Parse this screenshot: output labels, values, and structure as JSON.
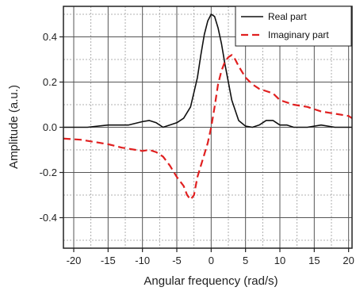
{
  "chart_data": {
    "type": "line",
    "title": "",
    "xlabel": "Angular frequency (rad/s)",
    "ylabel": "Amplitude (a.u.)",
    "xlim": [
      -21.5,
      20.5
    ],
    "ylim": [
      -0.535,
      0.535
    ],
    "x_ticks": [
      -20,
      -15,
      -10,
      -5,
      0,
      5,
      10,
      15,
      20
    ],
    "x_tick_labels": [
      "-20",
      "-15",
      "-10",
      "-5",
      "0",
      "5",
      "10",
      "15",
      "20"
    ],
    "y_ticks": [
      -0.4,
      -0.2,
      0.0,
      0.2,
      0.4
    ],
    "y_tick_labels": [
      "-0.4",
      "-0.2",
      "0.0",
      "0.2",
      "0.4"
    ],
    "grid": true,
    "legend_position": "top-right",
    "series": [
      {
        "name": "Real part",
        "color": "#111111",
        "line_style": "solid",
        "x": [
          -21.5,
          -18,
          -15,
          -12,
          -10,
          -9,
          -8,
          -7,
          -6,
          -5,
          -4,
          -3,
          -2,
          -1.5,
          -1,
          -0.5,
          0,
          0.5,
          1,
          1.5,
          2,
          3,
          4,
          5,
          6,
          7,
          8,
          9,
          10,
          11,
          12,
          14,
          16,
          18,
          20.5
        ],
        "y": [
          0.0,
          0.0,
          0.01,
          0.01,
          0.025,
          0.03,
          0.02,
          0.0,
          0.01,
          0.02,
          0.04,
          0.09,
          0.22,
          0.32,
          0.41,
          0.47,
          0.5,
          0.49,
          0.44,
          0.37,
          0.28,
          0.12,
          0.03,
          0.005,
          0.0,
          0.01,
          0.03,
          0.03,
          0.01,
          0.01,
          0.0,
          0.0,
          0.01,
          0.0,
          0.0
        ]
      },
      {
        "name": "Imaginary part",
        "color": "#e02020",
        "line_style": "dashed",
        "x": [
          -21.5,
          -19,
          -17,
          -15,
          -13,
          -11,
          -10,
          -9,
          -8,
          -7,
          -6,
          -5,
          -4,
          -3.5,
          -3,
          -2.5,
          -2,
          -1.5,
          -1,
          -0.5,
          0,
          0.5,
          1,
          1.5,
          2,
          2.5,
          3,
          3.5,
          4,
          5,
          6,
          7,
          8,
          9,
          10,
          12,
          14,
          16,
          18,
          20,
          20.5
        ],
        "y": [
          -0.05,
          -0.055,
          -0.065,
          -0.075,
          -0.09,
          -0.1,
          -0.105,
          -0.1,
          -0.11,
          -0.13,
          -0.17,
          -0.22,
          -0.26,
          -0.3,
          -0.32,
          -0.3,
          -0.22,
          -0.17,
          -0.12,
          -0.07,
          0.0,
          0.09,
          0.19,
          0.25,
          0.29,
          0.31,
          0.32,
          0.3,
          0.27,
          0.22,
          0.19,
          0.17,
          0.16,
          0.15,
          0.12,
          0.1,
          0.09,
          0.07,
          0.06,
          0.05,
          0.04
        ]
      }
    ]
  }
}
